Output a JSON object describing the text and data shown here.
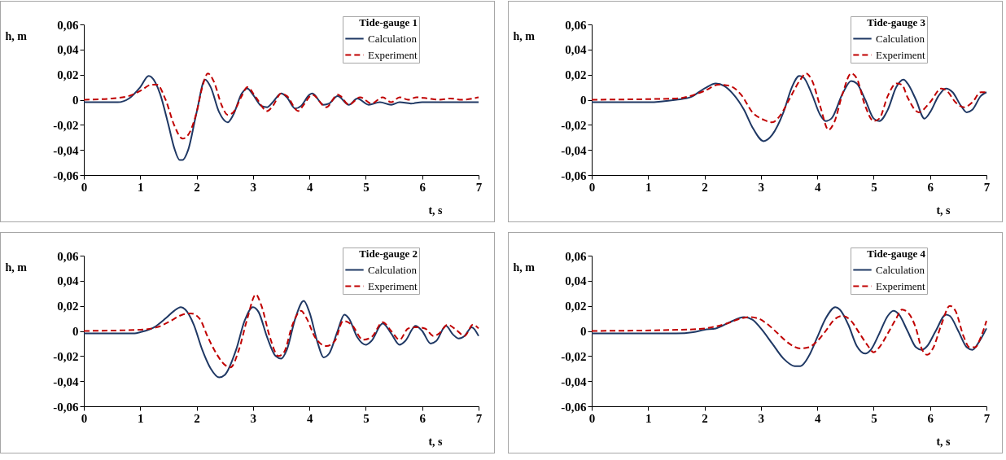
{
  "chart_data": [
    {
      "type": "line",
      "legend_title": "Tide-gauge 1",
      "xlabel": "t, s",
      "ylabel": "h, m",
      "xlim": [
        0,
        7
      ],
      "ylim": [
        -0.06,
        0.06
      ],
      "xticks": [
        0,
        1,
        2,
        3,
        4,
        5,
        6,
        7
      ],
      "yticks": [
        {
          "value": -0.06,
          "label": "-0,06"
        },
        {
          "value": -0.04,
          "label": "-0,04"
        },
        {
          "value": -0.02,
          "label": "-0,02"
        },
        {
          "value": 0,
          "label": "0"
        },
        {
          "value": 0.02,
          "label": "0,02"
        },
        {
          "value": 0.04,
          "label": "0,04"
        },
        {
          "value": 0.06,
          "label": "0,06"
        }
      ],
      "legend": "top right",
      "series": [
        {
          "name": "Calculation",
          "color": "#1f3864",
          "line_style": "solid",
          "x": [
            0,
            0.5,
            0.6,
            0.8,
            1.0,
            1.15,
            1.2,
            1.35,
            1.5,
            1.6,
            1.7,
            1.75,
            1.85,
            2.0,
            2.15,
            2.25,
            2.4,
            2.55,
            2.65,
            2.8,
            2.9,
            3.0,
            3.15,
            3.25,
            3.35,
            3.5,
            3.6,
            3.75,
            3.85,
            4.0,
            4.05,
            4.25,
            4.35,
            4.5,
            4.7,
            4.85,
            5.05,
            5.25,
            5.45,
            5.6,
            5.8,
            6.0,
            7.0
          ],
          "values": [
            -0.002,
            -0.002,
            -0.002,
            0.001,
            0.01,
            0.019,
            0.018,
            0.005,
            -0.02,
            -0.038,
            -0.048,
            -0.048,
            -0.04,
            -0.01,
            0.016,
            0.01,
            -0.01,
            -0.018,
            -0.012,
            0.005,
            0.009,
            0.004,
            -0.005,
            -0.006,
            -0.002,
            0.005,
            0.002,
            -0.007,
            -0.005,
            0.004,
            0.005,
            -0.004,
            -0.003,
            0.003,
            -0.004,
            0.001,
            -0.004,
            -0.002,
            -0.004,
            -0.002,
            -0.003,
            -0.002,
            -0.002
          ]
        },
        {
          "name": "Experiment",
          "color": "#c00000",
          "line_style": "dashed",
          "x": [
            0,
            0.5,
            0.8,
            1.0,
            1.2,
            1.3,
            1.45,
            1.6,
            1.75,
            1.85,
            2.0,
            2.1,
            2.2,
            2.3,
            2.45,
            2.55,
            2.65,
            2.8,
            2.9,
            3.05,
            3.25,
            3.35,
            3.5,
            3.6,
            3.8,
            3.9,
            4.05,
            4.3,
            4.5,
            4.55,
            4.7,
            4.9,
            5.1,
            5.3,
            5.45,
            5.6,
            5.75,
            5.9,
            6.1,
            6.3,
            6.5,
            6.7,
            6.9,
            7.0
          ],
          "values": [
            0,
            0.001,
            0.003,
            0.007,
            0.012,
            0.012,
            0.0,
            -0.02,
            -0.031,
            -0.028,
            -0.01,
            0.01,
            0.021,
            0.015,
            -0.005,
            -0.012,
            -0.01,
            0.003,
            0.01,
            0.002,
            -0.009,
            -0.005,
            0.005,
            0.003,
            -0.009,
            -0.004,
            0.004,
            -0.006,
            0.004,
            0.003,
            -0.004,
            0.002,
            -0.003,
            0.002,
            -0.002,
            0.002,
            0,
            0.002,
            0.001,
            0,
            0.001,
            0,
            0.001,
            0.002
          ]
        }
      ]
    },
    {
      "type": "line",
      "legend_title": "Tide-gauge 3",
      "xlabel": "t, s",
      "ylabel": "h, m",
      "xlim": [
        0,
        7
      ],
      "ylim": [
        -0.06,
        0.06
      ],
      "xticks": [
        0,
        1,
        2,
        3,
        4,
        5,
        6,
        7
      ],
      "yticks": [
        {
          "value": -0.06,
          "label": "-0,06"
        },
        {
          "value": -0.04,
          "label": "-0,04"
        },
        {
          "value": -0.02,
          "label": "-0,02"
        },
        {
          "value": 0,
          "label": "0"
        },
        {
          "value": 0.02,
          "label": "0,02"
        },
        {
          "value": 0.04,
          "label": "0,04"
        },
        {
          "value": 0.06,
          "label": "0,06"
        }
      ],
      "legend": "top right",
      "series": [
        {
          "name": "Calculation",
          "color": "#1f3864",
          "line_style": "solid",
          "x": [
            0,
            1.0,
            1.5,
            1.75,
            2.0,
            2.2,
            2.35,
            2.5,
            2.7,
            2.85,
            3.05,
            3.2,
            3.4,
            3.55,
            3.68,
            3.75,
            3.9,
            4.05,
            4.15,
            4.25,
            4.45,
            4.6,
            4.7,
            4.85,
            5.0,
            5.1,
            5.25,
            5.4,
            5.53,
            5.6,
            5.75,
            5.9,
            6.0,
            6.15,
            6.28,
            6.4,
            6.55,
            6.65,
            6.75,
            6.9,
            7.0
          ],
          "values": [
            -0.002,
            -0.002,
            0,
            0.002,
            0.009,
            0.013,
            0.011,
            0.005,
            -0.008,
            -0.022,
            -0.033,
            -0.028,
            -0.01,
            0.01,
            0.019,
            0.018,
            0.005,
            -0.012,
            -0.017,
            -0.015,
            0.005,
            0.015,
            0.013,
            0,
            -0.015,
            -0.017,
            -0.008,
            0.01,
            0.016,
            0.013,
            0,
            -0.015,
            -0.01,
            0.003,
            0.009,
            0.006,
            -0.005,
            -0.01,
            -0.008,
            0.003,
            0.006
          ]
        },
        {
          "name": "Experiment",
          "color": "#c00000",
          "line_style": "dashed",
          "x": [
            0,
            1.5,
            2.0,
            2.25,
            2.45,
            2.65,
            2.85,
            3.05,
            3.2,
            3.35,
            3.5,
            3.7,
            3.8,
            3.9,
            4.05,
            4.2,
            4.3,
            4.45,
            4.6,
            4.7,
            4.85,
            5.0,
            5.1,
            5.25,
            5.4,
            5.5,
            5.6,
            5.8,
            6.0,
            6.2,
            6.3,
            6.45,
            6.6,
            6.75,
            6.9,
            7.0
          ],
          "values": [
            0,
            0.001,
            0.007,
            0.012,
            0.011,
            0.004,
            -0.01,
            -0.016,
            -0.018,
            -0.012,
            0.0,
            0.016,
            0.021,
            0.016,
            -0.005,
            -0.024,
            -0.018,
            0.005,
            0.021,
            0.017,
            -0.005,
            -0.017,
            -0.015,
            0.003,
            0.013,
            0.012,
            0.002,
            -0.01,
            -0.002,
            0.009,
            0.007,
            -0.002,
            -0.006,
            -0.002,
            0.006,
            0.006
          ]
        }
      ]
    },
    {
      "type": "line",
      "legend_title": "Tide-gauge 2",
      "xlabel": "t, s",
      "ylabel": "h, m",
      "xlim": [
        0,
        7
      ],
      "ylim": [
        -0.06,
        0.06
      ],
      "xticks": [
        0,
        1,
        2,
        3,
        4,
        5,
        6,
        7
      ],
      "yticks": [
        {
          "value": -0.06,
          "label": "-0,06"
        },
        {
          "value": -0.04,
          "label": "-0,04"
        },
        {
          "value": -0.02,
          "label": "-0,02"
        },
        {
          "value": 0,
          "label": "0"
        },
        {
          "value": 0.02,
          "label": "0,02"
        },
        {
          "value": 0.04,
          "label": "0,04"
        },
        {
          "value": 0.06,
          "label": "0,06"
        }
      ],
      "legend": "top right",
      "series": [
        {
          "name": "Calculation",
          "color": "#1f3864",
          "line_style": "solid",
          "x": [
            0,
            0.9,
            1.0,
            1.25,
            1.45,
            1.6,
            1.72,
            1.8,
            1.95,
            2.1,
            2.25,
            2.4,
            2.5,
            2.7,
            2.85,
            3.0,
            3.1,
            3.25,
            3.4,
            3.5,
            3.6,
            3.75,
            3.9,
            4.0,
            4.15,
            4.25,
            4.35,
            4.5,
            4.62,
            4.7,
            4.85,
            5.0,
            5.1,
            5.3,
            5.45,
            5.6,
            5.7,
            5.88,
            6.0,
            6.15,
            6.25,
            6.42,
            6.55,
            6.65,
            6.75,
            6.88,
            7.0
          ],
          "values": [
            -0.002,
            -0.002,
            -0.001,
            0.003,
            0.01,
            0.016,
            0.019,
            0.017,
            0.005,
            -0.015,
            -0.03,
            -0.037,
            -0.035,
            -0.015,
            0.008,
            0.019,
            0.015,
            -0.005,
            -0.02,
            -0.022,
            -0.015,
            0.01,
            0.024,
            0.015,
            -0.01,
            -0.021,
            -0.018,
            0.0,
            0.013,
            0.01,
            -0.005,
            -0.011,
            -0.008,
            0.006,
            -0.002,
            -0.011,
            -0.008,
            0.004,
            0,
            -0.01,
            -0.008,
            0.004,
            -0.003,
            -0.006,
            -0.004,
            0.003,
            -0.004
          ]
        },
        {
          "name": "Experiment",
          "color": "#c00000",
          "line_style": "dashed",
          "x": [
            0,
            1.0,
            1.3,
            1.5,
            1.75,
            1.9,
            2.05,
            2.2,
            2.35,
            2.5,
            2.6,
            2.75,
            2.9,
            3.05,
            3.15,
            3.3,
            3.45,
            3.55,
            3.7,
            3.85,
            3.95,
            4.1,
            4.3,
            4.45,
            4.6,
            4.75,
            4.95,
            5.1,
            5.3,
            5.45,
            5.6,
            5.75,
            5.9,
            6.05,
            6.2,
            6.3,
            6.45,
            6.6,
            6.75,
            6.9,
            7.0
          ],
          "values": [
            0,
            0.001,
            0.003,
            0.007,
            0.013,
            0.014,
            0.01,
            -0.005,
            -0.018,
            -0.027,
            -0.029,
            -0.015,
            0.01,
            0.029,
            0.02,
            -0.005,
            -0.02,
            -0.017,
            0.005,
            0.016,
            0.01,
            -0.005,
            -0.012,
            -0.008,
            0.008,
            0.005,
            -0.007,
            -0.005,
            0.007,
            0.0,
            -0.007,
            0.002,
            0.003,
            0.002,
            -0.004,
            -0.002,
            0.005,
            0.001,
            -0.004,
            0.005,
            0.002
          ]
        }
      ]
    },
    {
      "type": "line",
      "legend_title": "Tide-gauge 4",
      "xlabel": "t, s",
      "ylabel": "h, m",
      "xlim": [
        0,
        7
      ],
      "ylim": [
        -0.06,
        0.06
      ],
      "xticks": [
        0,
        1,
        2,
        3,
        4,
        5,
        6,
        7
      ],
      "yticks": [
        {
          "value": -0.06,
          "label": "-0,06"
        },
        {
          "value": -0.04,
          "label": "-0,04"
        },
        {
          "value": -0.02,
          "label": "-0,02"
        },
        {
          "value": 0,
          "label": "0"
        },
        {
          "value": 0.02,
          "label": "0,02"
        },
        {
          "value": 0.04,
          "label": "0,04"
        },
        {
          "value": 0.06,
          "label": "0,06"
        }
      ],
      "legend": "top right",
      "series": [
        {
          "name": "Calculation",
          "color": "#1f3864",
          "line_style": "solid",
          "x": [
            0,
            1.5,
            1.8,
            2.0,
            2.2,
            2.45,
            2.7,
            2.85,
            3.0,
            3.2,
            3.4,
            3.6,
            3.7,
            3.85,
            4.0,
            4.15,
            4.32,
            4.4,
            4.55,
            4.7,
            4.85,
            4.95,
            5.1,
            5.25,
            5.35,
            5.45,
            5.6,
            5.75,
            5.85,
            5.95,
            6.1,
            6.28,
            6.35,
            6.5,
            6.65,
            6.75,
            6.85,
            7.0
          ],
          "values": [
            -0.002,
            -0.002,
            -0.001,
            0.001,
            0.002,
            0.007,
            0.011,
            0.009,
            0.002,
            -0.01,
            -0.022,
            -0.028,
            -0.028,
            -0.02,
            -0.005,
            0.01,
            0.019,
            0.017,
            0.005,
            -0.012,
            -0.018,
            -0.015,
            -0.002,
            0.012,
            0.016,
            0.013,
            0.0,
            -0.013,
            -0.015,
            -0.012,
            0.0,
            0.013,
            0.012,
            0.0,
            -0.013,
            -0.015,
            -0.01,
            0.002
          ]
        },
        {
          "name": "Experiment",
          "color": "#c00000",
          "line_style": "dashed",
          "x": [
            0,
            1.6,
            2.0,
            2.4,
            2.65,
            2.8,
            2.95,
            3.1,
            3.3,
            3.5,
            3.7,
            3.85,
            4.0,
            4.15,
            4.3,
            4.45,
            4.6,
            4.75,
            4.9,
            5.0,
            5.1,
            5.25,
            5.4,
            5.5,
            5.6,
            5.75,
            5.85,
            5.95,
            6.05,
            6.2,
            6.35,
            6.45,
            6.6,
            6.7,
            6.8,
            6.9,
            7.0
          ],
          "values": [
            0,
            0.001,
            0.002,
            0.006,
            0.01,
            0.011,
            0.01,
            0.006,
            -0.002,
            -0.01,
            -0.014,
            -0.013,
            -0.008,
            0.0,
            0.009,
            0.012,
            0.008,
            -0.002,
            -0.012,
            -0.017,
            -0.013,
            -0.002,
            0.01,
            0.017,
            0.015,
            0.002,
            -0.014,
            -0.019,
            -0.014,
            0.005,
            0.02,
            0.016,
            -0.005,
            -0.013,
            -0.013,
            -0.005,
            0.008
          ]
        }
      ]
    }
  ]
}
